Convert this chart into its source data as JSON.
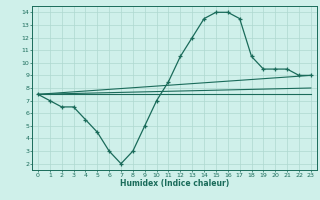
{
  "xlabel": "Humidex (Indice chaleur)",
  "bg_color": "#cff0ea",
  "grid_color": "#aed8d0",
  "line_color": "#1a6b5a",
  "xlim": [
    -0.5,
    23.5
  ],
  "ylim": [
    1.5,
    14.5
  ],
  "xticks": [
    0,
    1,
    2,
    3,
    4,
    5,
    6,
    7,
    8,
    9,
    10,
    11,
    12,
    13,
    14,
    15,
    16,
    17,
    18,
    19,
    20,
    21,
    22,
    23
  ],
  "yticks": [
    2,
    3,
    4,
    5,
    6,
    7,
    8,
    9,
    10,
    11,
    12,
    13,
    14
  ],
  "main_line_x": [
    0,
    1,
    2,
    3,
    4,
    5,
    6,
    7,
    8,
    9,
    10,
    11,
    12,
    13,
    14,
    15,
    16,
    17,
    18,
    19,
    20,
    21,
    22,
    23
  ],
  "main_line_y": [
    7.5,
    7.0,
    6.5,
    6.5,
    5.5,
    4.5,
    3.0,
    2.0,
    3.0,
    5.0,
    7.0,
    8.5,
    10.5,
    12.0,
    13.5,
    14.0,
    14.0,
    13.5,
    10.5,
    9.5,
    9.5,
    9.5,
    9.0,
    9.0
  ],
  "straight_lines": [
    {
      "x0": 0,
      "y0": 7.5,
      "x1": 23,
      "y1": 8.0
    },
    {
      "x0": 0,
      "y0": 7.5,
      "x1": 23,
      "y1": 9.0
    },
    {
      "x0": 0,
      "y0": 7.5,
      "x1": 23,
      "y1": 7.5
    }
  ]
}
